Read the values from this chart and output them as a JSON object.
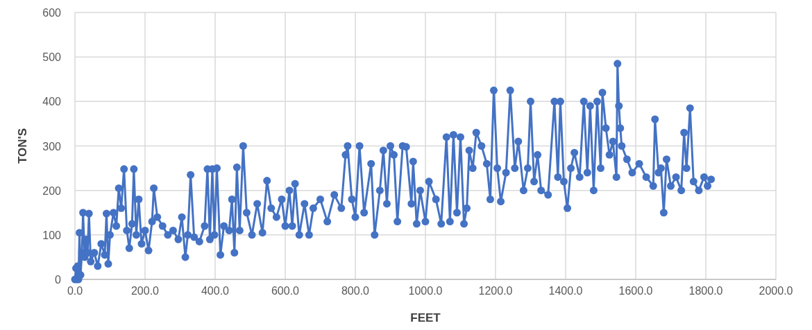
{
  "chart_data": {
    "type": "line",
    "xlabel": "FEET",
    "ylabel": "TON'S",
    "xlim": [
      0,
      2000
    ],
    "ylim": [
      0,
      600
    ],
    "xticks": [
      {
        "value": 0,
        "label": "0.0"
      },
      {
        "value": 200,
        "label": "200.0"
      },
      {
        "value": 400,
        "label": "400.0"
      },
      {
        "value": 600,
        "label": "600.0"
      },
      {
        "value": 800,
        "label": "800.0"
      },
      {
        "value": 1000,
        "label": "1000.0"
      },
      {
        "value": 1200,
        "label": "1200.0"
      },
      {
        "value": 1400,
        "label": "1400.0"
      },
      {
        "value": 1600,
        "label": "1600.0"
      },
      {
        "value": 1800,
        "label": "1800.0"
      },
      {
        "value": 2000,
        "label": "2000.0"
      }
    ],
    "yticks": [
      0,
      100,
      200,
      300,
      400,
      500,
      600
    ],
    "grid": true,
    "marker": "circle",
    "line_style": "solid",
    "series": [
      {
        "color": "#4472c4",
        "x": [
          0,
          3,
          5,
          8,
          10,
          13,
          16,
          20,
          23,
          28,
          32,
          36,
          40,
          45,
          55,
          65,
          75,
          85,
          90,
          95,
          100,
          110,
          118,
          125,
          132,
          140,
          148,
          155,
          163,
          168,
          175,
          182,
          190,
          200,
          210,
          220,
          225,
          235,
          250,
          265,
          280,
          295,
          305,
          315,
          322,
          330,
          340,
          355,
          370,
          378,
          385,
          392,
          398,
          405,
          415,
          425,
          440,
          448,
          455,
          462,
          470,
          480,
          490,
          505,
          520,
          535,
          548,
          560,
          575,
          590,
          600,
          612,
          620,
          628,
          640,
          655,
          668,
          680,
          700,
          720,
          740,
          760,
          772,
          778,
          790,
          800,
          812,
          825,
          845,
          855,
          870,
          880,
          890,
          900,
          910,
          920,
          935,
          945,
          960,
          965,
          975,
          985,
          1000,
          1010,
          1030,
          1045,
          1060,
          1070,
          1080,
          1090,
          1100,
          1110,
          1118,
          1125,
          1135,
          1145,
          1160,
          1175,
          1185,
          1195,
          1205,
          1215,
          1230,
          1242,
          1255,
          1265,
          1280,
          1292,
          1300,
          1310,
          1320,
          1330,
          1350,
          1368,
          1378,
          1385,
          1395,
          1405,
          1415,
          1425,
          1440,
          1452,
          1462,
          1470,
          1480,
          1490,
          1500,
          1505,
          1515,
          1525,
          1535,
          1545,
          1548,
          1552,
          1556,
          1560,
          1575,
          1590,
          1610,
          1630,
          1650,
          1655,
          1665,
          1672,
          1680,
          1688,
          1700,
          1715,
          1730,
          1738,
          1745,
          1755,
          1765,
          1780,
          1795,
          1805,
          1815
        ],
        "values": [
          0,
          25,
          0,
          30,
          0,
          105,
          10,
          60,
          150,
          50,
          90,
          60,
          148,
          40,
          60,
          30,
          80,
          55,
          148,
          35,
          100,
          150,
          120,
          205,
          160,
          248,
          110,
          70,
          125,
          248,
          100,
          180,
          80,
          110,
          65,
          130,
          205,
          140,
          120,
          100,
          110,
          90,
          140,
          50,
          100,
          235,
          95,
          85,
          120,
          248,
          90,
          248,
          100,
          250,
          55,
          120,
          110,
          180,
          60,
          252,
          110,
          300,
          150,
          100,
          170,
          105,
          222,
          160,
          140,
          180,
          120,
          200,
          120,
          215,
          100,
          170,
          100,
          160,
          180,
          130,
          190,
          160,
          280,
          300,
          180,
          140,
          300,
          150,
          260,
          100,
          200,
          290,
          170,
          300,
          280,
          130,
          300,
          298,
          170,
          265,
          125,
          200,
          130,
          220,
          180,
          125,
          320,
          130,
          325,
          150,
          320,
          125,
          160,
          290,
          250,
          330,
          300,
          260,
          180,
          425,
          250,
          175,
          240,
          425,
          250,
          310,
          200,
          250,
          400,
          220,
          280,
          200,
          190,
          400,
          230,
          400,
          220,
          160,
          250,
          285,
          230,
          400,
          240,
          390,
          200,
          400,
          250,
          420,
          340,
          280,
          310,
          230,
          485,
          390,
          340,
          300,
          270,
          240,
          260,
          230,
          210,
          360,
          240,
          250,
          150,
          270,
          210,
          230,
          200,
          330,
          250,
          385,
          220,
          200,
          230,
          210,
          225
        ]
      }
    ]
  }
}
